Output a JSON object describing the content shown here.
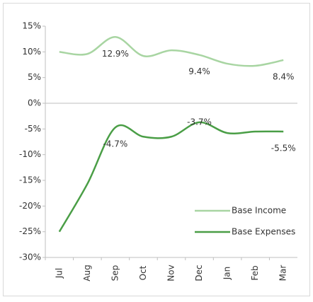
{
  "chart_data": {
    "type": "line",
    "categories": [
      "Jul",
      "Aug",
      "Sep",
      "Oct",
      "Nov",
      "Dec",
      "Jan",
      "Feb",
      "Mar"
    ],
    "series": [
      {
        "name": "Base Income",
        "color": "#a8d5a2",
        "values": [
          10,
          9.6,
          12.9,
          9.2,
          10.3,
          9.4,
          7.7,
          7.3,
          8.4
        ],
        "value_labels": [
          null,
          null,
          "12.9%",
          null,
          null,
          "9.4%",
          null,
          null,
          "8.4%"
        ]
      },
      {
        "name": "Base Expenses",
        "color": "#4a9e46",
        "values": [
          -25,
          -15.7,
          -4.7,
          -6.5,
          -6.5,
          -3.7,
          -5.8,
          -5.5,
          -5.5
        ],
        "value_labels": [
          null,
          null,
          "-4.7%",
          null,
          null,
          "-3.7%",
          null,
          null,
          "-5.5%"
        ]
      }
    ],
    "ylim": [
      -30,
      15
    ],
    "yticks": [
      {
        "value": -30,
        "label": "-30%"
      },
      {
        "value": -25,
        "label": "-25%"
      },
      {
        "value": -20,
        "label": "-20%"
      },
      {
        "value": -15,
        "label": "-15%"
      },
      {
        "value": -10,
        "label": "-10%"
      },
      {
        "value": -5,
        "label": "-5%"
      },
      {
        "value": 0,
        "label": "0%"
      },
      {
        "value": 5,
        "label": "5%"
      },
      {
        "value": 10,
        "label": "10%"
      },
      {
        "value": 15,
        "label": "15%"
      }
    ],
    "legend": "lower right"
  }
}
